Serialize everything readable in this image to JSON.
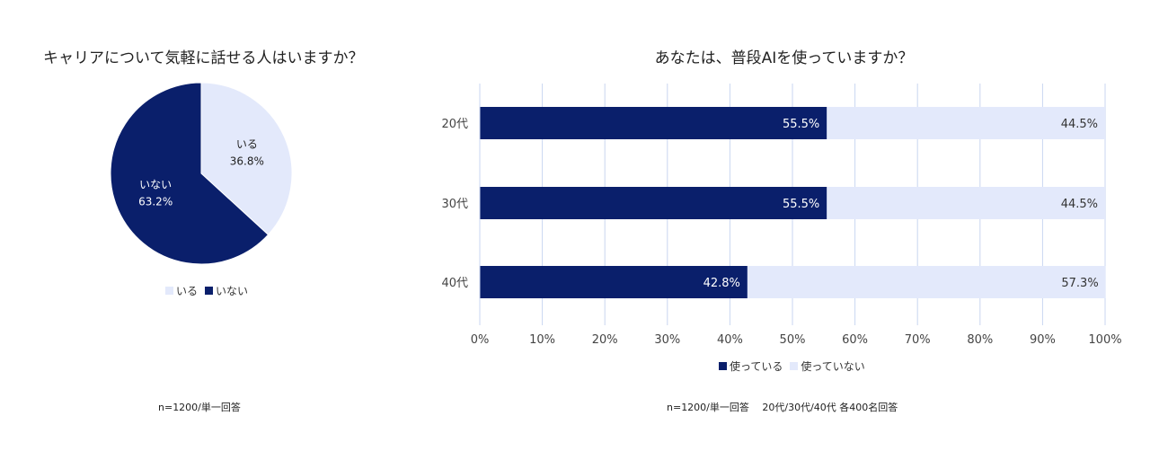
{
  "colors": {
    "dark": "#0a1f6b",
    "light": "#e3e9fb",
    "grid": "#c9d6f0"
  },
  "pie": {
    "title": "キャリアについて気軽に話せる人はいますか？",
    "note": "n=1200/単一回答",
    "legend": [
      "いる",
      "いない"
    ]
  },
  "bar": {
    "title": "あなたは、普段AIを使っていますか？",
    "note": "n=1200/単一回答　 20代/30代/40代 各400名回答",
    "legend": [
      "使っている",
      "使っていない"
    ]
  },
  "chart_data": [
    {
      "type": "pie",
      "title": "キャリアについて気軽に話せる人はいますか？",
      "slices": [
        {
          "label": "いる",
          "value": 36.8,
          "value_label": "36.8%",
          "color": "#e3e9fb"
        },
        {
          "label": "いない",
          "value": 63.2,
          "value_label": "63.2%",
          "color": "#0a1f6b"
        }
      ],
      "legend": [
        "いる",
        "いない"
      ]
    },
    {
      "type": "bar",
      "orientation": "horizontal",
      "stacked": true,
      "title": "あなたは、普段AIを使っていますか？",
      "categories": [
        "20代",
        "30代",
        "40代"
      ],
      "series": [
        {
          "name": "使っている",
          "values": [
            55.5,
            55.5,
            42.8
          ],
          "labels": [
            "55.5%",
            "55.5%",
            "42.8%"
          ],
          "color": "#0a1f6b"
        },
        {
          "name": "使っていない",
          "values": [
            44.5,
            44.5,
            57.3
          ],
          "labels": [
            "44.5%",
            "44.5%",
            "57.3%"
          ],
          "color": "#e3e9fb"
        }
      ],
      "xlim": [
        0,
        100
      ],
      "xticks": [
        "0%",
        "10%",
        "20%",
        "30%",
        "40%",
        "50%",
        "60%",
        "70%",
        "80%",
        "90%",
        "100%"
      ],
      "grid": true,
      "legend_position": "bottom"
    }
  ]
}
